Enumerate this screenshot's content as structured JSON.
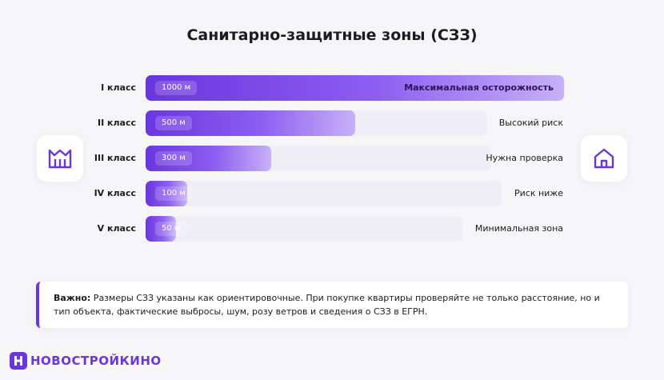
{
  "title": "Санитарно-защитные зоны (СЗЗ)",
  "icons": {
    "left": "factory-icon",
    "right": "house-icon"
  },
  "colors": {
    "accent": "#6a36de",
    "track": "#efeef6",
    "background": "#f6f6f9"
  },
  "chart_data": {
    "type": "bar",
    "orientation": "horizontal",
    "categories": [
      "I класс",
      "II класс",
      "III класс",
      "IV класс",
      "V класс"
    ],
    "values": [
      1000,
      500,
      300,
      100,
      50
    ],
    "value_labels": [
      "1000 м",
      "500 м",
      "300 м",
      "100 м",
      "50 м"
    ],
    "descriptions": [
      "Максимальная осторожность",
      "Высокий риск",
      "Нужна проверка",
      "Риск ниже",
      "Минимальная зона"
    ],
    "unit": "м",
    "xlim": [
      0,
      1000
    ]
  },
  "note": {
    "bold": "Важно:",
    "text": " Размеры СЗЗ указаны как ориентировочные. При покупке квартиры проверяйте не только расстояние, но и тип объекта, фактические выбросы, шум, розу ветров и сведения о СЗЗ в ЕГРН."
  },
  "brand": {
    "name": "НОВОСТРОЙКИНО",
    "logo_letter": "Н"
  }
}
